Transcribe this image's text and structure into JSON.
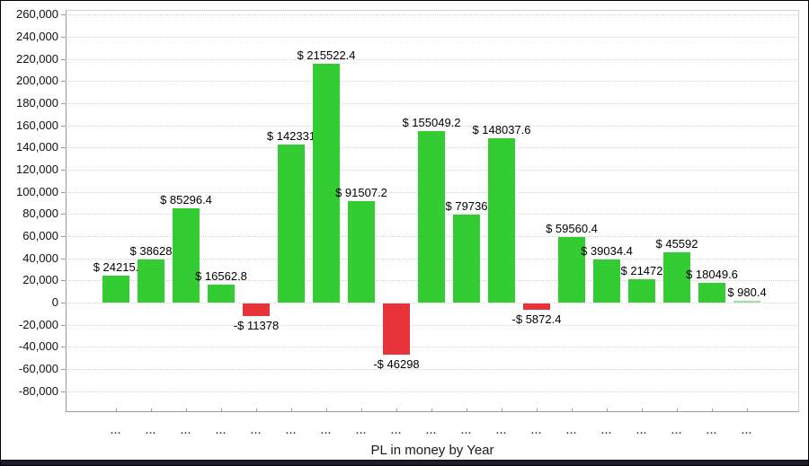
{
  "window": {
    "background_color": "#ffffff",
    "bottom_edge_color": "#1c1c30"
  },
  "chart_data": {
    "type": "bar",
    "title": "PL in money by Year",
    "categories": [
      "...",
      "...",
      "...",
      "...",
      "...",
      "...",
      "...",
      "...",
      "...",
      "...",
      "...",
      "...",
      "...",
      "...",
      "...",
      "...",
      "...",
      "...",
      "..."
    ],
    "values": [
      24215.2,
      38628,
      85296.4,
      16562.8,
      -11378,
      142331,
      215522.4,
      91507.2,
      -46298,
      155049.2,
      79736,
      148037.6,
      -5872.4,
      59560.4,
      39034.4,
      21472,
      45592,
      18049.6,
      980.4
    ],
    "bar_labels": [
      "$ 24215.",
      "$ 38628",
      "$ 85296.4",
      "$ 16562.8",
      "-$ 11378",
      "$ 142331",
      "$ 215522.4",
      "$ 91507.2",
      "-$ 46298",
      "$ 155049.2",
      "$ 79736",
      "$ 148037.6",
      "-$ 5872.4",
      "$ 59560.4",
      "$ 39034.4",
      "$ 21472",
      "$ 45592",
      "$ 18049.6",
      "$ 980.4"
    ],
    "xlabel": "",
    "ylabel": "",
    "ylim": [
      -80000,
      260000
    ],
    "ytick_step": 20000,
    "ytick_labels": [
      "260,000",
      "240,000",
      "220,000",
      "200,000",
      "180,000",
      "160,000",
      "140,000",
      "120,000",
      "100,000",
      "80,000",
      "60,000",
      "40,000",
      "20,000",
      "0",
      "-20,000",
      "-40,000",
      "-60,000",
      "-80,000"
    ],
    "grid": "horizontal-dotted",
    "legend_position": "none",
    "colors": {
      "positive_bar": "#33cc33",
      "tiny_positive_bar": "#9be49b",
      "negative_bar": "#e6343a",
      "gridline": "#d6d6d6",
      "axis_line": "#9a9a9a",
      "label_text": "#000000"
    }
  }
}
